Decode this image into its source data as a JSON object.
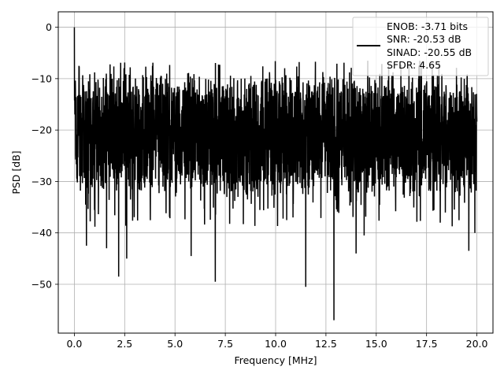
{
  "chart_data": {
    "type": "line",
    "title": "",
    "xlabel": "Frequency [MHz]",
    "ylabel": "PSD [dB]",
    "xlim": [
      -0.8,
      20.8
    ],
    "ylim": [
      -59.5,
      3
    ],
    "xticks": [
      0.0,
      2.5,
      5.0,
      7.5,
      10.0,
      12.5,
      15.0,
      17.5,
      20.0
    ],
    "xtick_labels": [
      "0.0",
      "2.5",
      "5.0",
      "7.5",
      "10.0",
      "12.5",
      "15.0",
      "17.5",
      "20.0"
    ],
    "yticks": [
      0,
      -10,
      -20,
      -30,
      -40,
      -50
    ],
    "ytick_labels": [
      "0",
      "−10",
      "−20",
      "−30",
      "−40",
      "−50"
    ],
    "grid": true,
    "legend_position": "upper-right",
    "legend": [
      "ENOB: -3.71 bits",
      "SNR: -20.53 dB",
      "SINAD: -20.55 dB",
      "SFDR: 4.65"
    ],
    "series": [
      {
        "color": "#000000",
        "x_range": [
          0,
          20
        ],
        "peak": [
          0,
          0
        ],
        "noise_band": [
          -34,
          -8
        ],
        "notable_dips": [
          {
            "x": 0.6,
            "y": -42.5
          },
          {
            "x": 1.6,
            "y": -43.0
          },
          {
            "x": 2.2,
            "y": -48.5
          },
          {
            "x": 2.6,
            "y": -45.0
          },
          {
            "x": 5.8,
            "y": -44.5
          },
          {
            "x": 7.0,
            "y": -49.5
          },
          {
            "x": 11.5,
            "y": -50.5
          },
          {
            "x": 12.9,
            "y": -57.0
          },
          {
            "x": 14.0,
            "y": -44.0
          },
          {
            "x": 14.4,
            "y": -40.5
          },
          {
            "x": 19.6,
            "y": -43.5
          },
          {
            "x": 19.9,
            "y": -40.0
          }
        ]
      }
    ]
  }
}
